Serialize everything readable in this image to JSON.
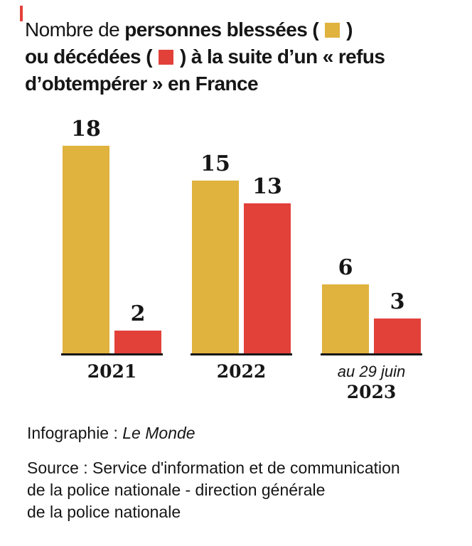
{
  "brand": {
    "dash_color": "#e2413a"
  },
  "title": {
    "line1_regular": "Nombre de ",
    "line1_bold": "personnes blessées (",
    "line1_close": ")",
    "line2_pre": "ou décédées (",
    "line2_post": ") à la suite d’un « refus",
    "line3": "d’obtempérer » en France"
  },
  "chart_data": {
    "type": "bar",
    "title": "Nombre de personnes blessées ou décédées à la suite d’un « refus d’obtempérer » en France",
    "categories": [
      "2021",
      "2022",
      "2023"
    ],
    "category_prefixes": [
      "",
      "",
      "au 29 juin"
    ],
    "series": [
      {
        "key": "blessees",
        "name": "personnes blessées",
        "color": "#e0b23e",
        "values": [
          18,
          15,
          6
        ]
      },
      {
        "key": "decedees",
        "name": "personnes décédées",
        "color": "#e2413a",
        "values": [
          2,
          13,
          3
        ]
      }
    ],
    "ylim": [
      0,
      18
    ],
    "grid": false,
    "legend": "inline-swatches-in-title",
    "value_labels": true,
    "axis_color": "#161616"
  },
  "footer": {
    "credit_label": "Infographie : ",
    "credit_name": "Le Monde",
    "source_lines": [
      "Source : Service d'information et de communication",
      "de la police nationale - direction générale",
      "de la police nationale"
    ]
  }
}
